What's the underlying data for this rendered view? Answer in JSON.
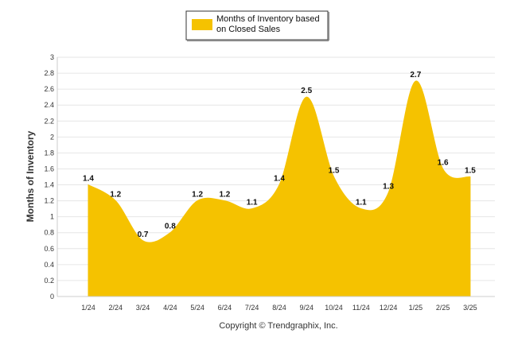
{
  "legend": {
    "line1": "Months of Inventory based",
    "line2": "on Closed Sales"
  },
  "footer": {
    "copyright": "Copyright © Trendgraphix, Inc."
  },
  "colors": {
    "series_fill": "#F5C200",
    "grid": "#E6E6E6",
    "axis": "#CCCCCC",
    "text": "#333333"
  },
  "chart_data": {
    "type": "area",
    "title": "",
    "xlabel": "",
    "ylabel": "Months of Inventory",
    "categories": [
      "1/24",
      "2/24",
      "3/24",
      "4/24",
      "5/24",
      "6/24",
      "7/24",
      "8/24",
      "9/24",
      "10/24",
      "11/24",
      "12/24",
      "1/25",
      "2/25",
      "3/25"
    ],
    "series": [
      {
        "name": "Months of Inventory based on Closed Sales",
        "values": [
          1.4,
          1.2,
          0.7,
          0.8,
          1.2,
          1.2,
          1.1,
          1.4,
          2.5,
          1.5,
          1.1,
          1.3,
          2.7,
          1.6,
          1.5
        ],
        "labels": [
          "1.4",
          "1.2",
          "0.7",
          "0.8",
          "1.2",
          "1.2",
          "1.1",
          "1.4",
          "2.5",
          "1.5",
          "1.1",
          "1.3",
          "2.7",
          "1.6",
          "1.5"
        ]
      }
    ],
    "yticks": [
      "0",
      "0.2",
      "0.4",
      "0.6",
      "0.8",
      "1",
      "1.2",
      "1.4",
      "1.6",
      "1.8",
      "2",
      "2.2",
      "2.4",
      "2.6",
      "2.8",
      "3"
    ],
    "ylim": [
      0,
      3
    ],
    "grid": true,
    "legend_position": "top-center"
  }
}
